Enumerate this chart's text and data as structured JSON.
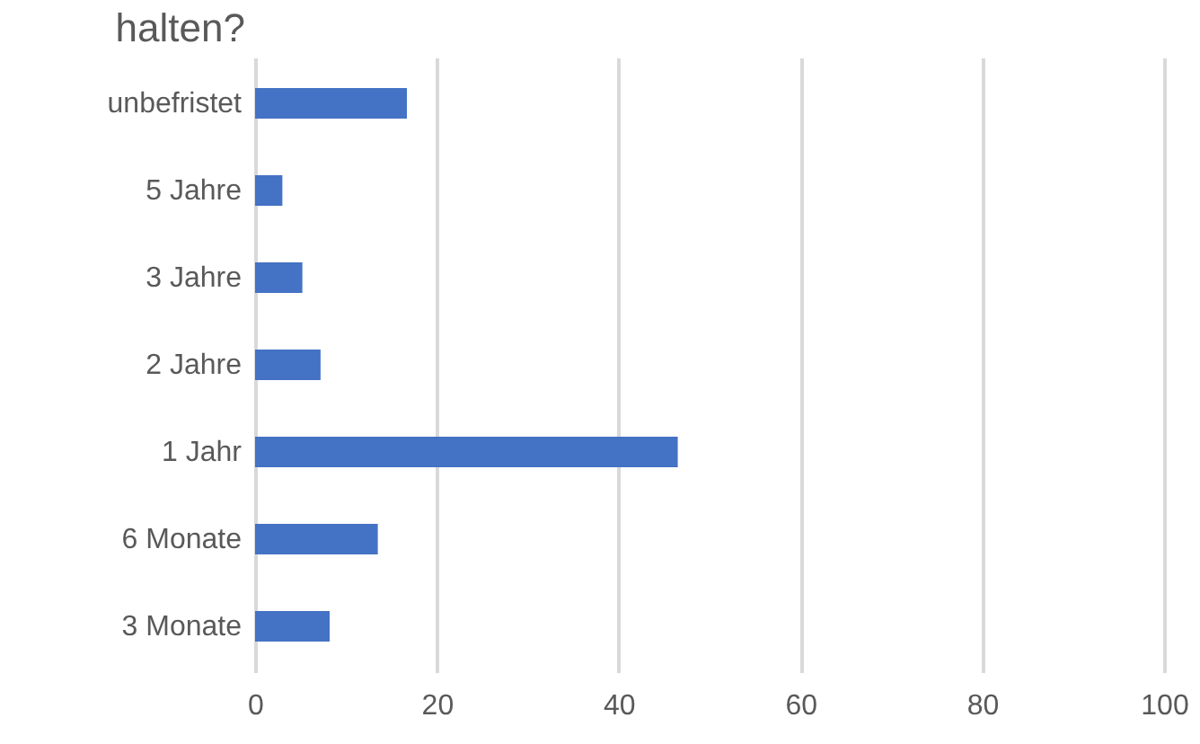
{
  "chart_data": {
    "type": "bar",
    "orientation": "horizontal",
    "title": "halten?",
    "categories": [
      "unbefristet",
      "5 Jahre",
      "3 Jahre",
      "2 Jahre",
      "1 Jahr",
      "6 Monate",
      "3 Monate"
    ],
    "values": [
      16.7,
      3.0,
      5.2,
      7.2,
      46.5,
      13.5,
      8.2
    ],
    "color": "#4472c4",
    "xlim": [
      0,
      100
    ],
    "xticks": [
      0,
      20,
      40,
      60,
      80,
      100
    ],
    "grid": "x"
  }
}
